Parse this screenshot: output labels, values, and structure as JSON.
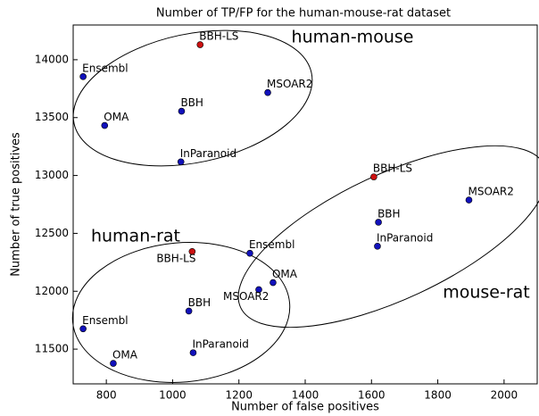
{
  "chart_data": {
    "type": "scatter",
    "title": "Number of TP/FP for the human-mouse-rat dataset",
    "xlabel": "Number of false positives",
    "ylabel": "Number of true positives",
    "xlim": [
      700,
      2100
    ],
    "ylim": [
      11200,
      14300
    ],
    "xticks": [
      800,
      1000,
      1200,
      1400,
      1600,
      1800,
      2000
    ],
    "yticks": [
      11500,
      12000,
      12500,
      13000,
      13500,
      14000
    ],
    "groups": [
      {
        "name": "human-mouse",
        "labels": [
          "BBH-LS",
          "Ensembl",
          "MSOAR2",
          "BBH",
          "OMA",
          "InParanoid"
        ],
        "x": [
          1083,
          730,
          1287,
          1027,
          795,
          1025
        ],
        "y": [
          14130,
          13854,
          13716,
          13555,
          13432,
          13118
        ],
        "colors": [
          "#cc1111",
          "#1111bb",
          "#1111bb",
          "#1111bb",
          "#1111bb",
          "#1111bb"
        ]
      },
      {
        "name": "mouse-rat",
        "labels": [
          "BBH-LS",
          "MSOAR2",
          "BBH",
          "InParanoid",
          "Ensembl",
          "OMA"
        ],
        "x": [
          1607,
          1894,
          1621,
          1618,
          1233,
          1303
        ],
        "y": [
          12988,
          12788,
          12596,
          12389,
          12328,
          12075
        ],
        "colors": [
          "#cc1111",
          "#1111bb",
          "#1111bb",
          "#1111bb",
          "#1111bb",
          "#1111bb"
        ]
      },
      {
        "name": "human-rat",
        "labels": [
          "BBH-LS",
          "MSOAR2",
          "BBH",
          "Ensembl",
          "InParanoid",
          "OMA"
        ],
        "x": [
          1059,
          1260,
          1049,
          730,
          1062,
          821
        ],
        "y": [
          12343,
          12014,
          11829,
          11676,
          11469,
          11377
        ],
        "colors": [
          "#cc1111",
          "#1111bb",
          "#1111bb",
          "#1111bb",
          "#1111bb",
          "#1111bb"
        ]
      }
    ]
  }
}
